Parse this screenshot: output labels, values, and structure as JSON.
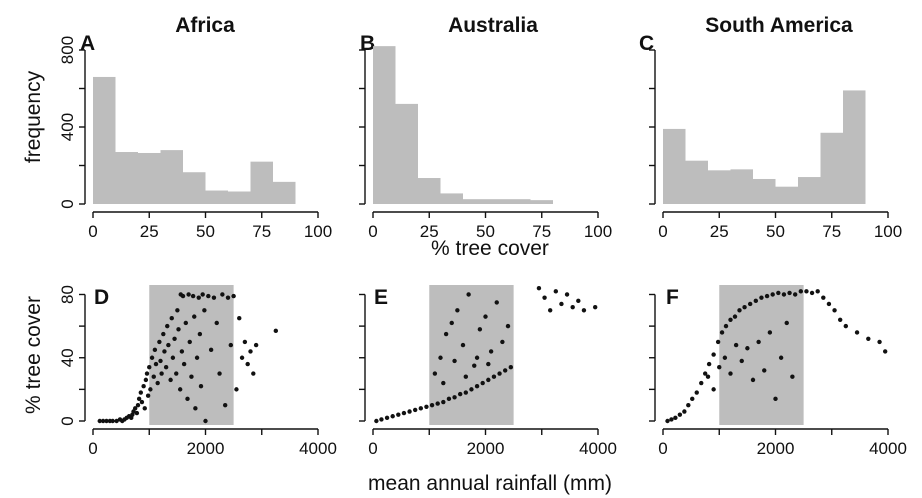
{
  "figure": {
    "xlabel_top": "% tree cover",
    "xlabel_bottom": "mean annual rainfall (mm)",
    "ylabel_top": "frequency",
    "ylabel_bottom": "% tree cover"
  },
  "chart_data": [
    {
      "panel": "A",
      "title": "Africa",
      "type": "bar",
      "bin_edges": [
        0,
        10,
        20,
        30,
        40,
        50,
        60,
        70,
        80,
        90
      ],
      "values": [
        660,
        270,
        265,
        280,
        165,
        70,
        65,
        220,
        115
      ],
      "xlim": [
        0,
        100
      ],
      "ylim": [
        0,
        800
      ],
      "xticks": [
        "0",
        "25",
        "50",
        "75",
        "100"
      ],
      "yticks": [
        "0",
        "400",
        "800"
      ]
    },
    {
      "panel": "B",
      "title": "Australia",
      "type": "bar",
      "bin_edges": [
        0,
        10,
        20,
        30,
        40,
        50,
        60,
        70,
        80,
        90
      ],
      "values": [
        820,
        520,
        135,
        55,
        25,
        25,
        25,
        20,
        0
      ],
      "xlim": [
        0,
        100
      ],
      "ylim": [
        0,
        800
      ],
      "xticks": [
        "0",
        "25",
        "50",
        "75",
        "100"
      ],
      "yticks": [
        "0",
        "400",
        "800"
      ]
    },
    {
      "panel": "C",
      "title": "South America",
      "type": "bar",
      "bin_edges": [
        0,
        10,
        20,
        30,
        40,
        50,
        60,
        70,
        80,
        90
      ],
      "values": [
        390,
        225,
        175,
        180,
        130,
        90,
        140,
        370,
        590
      ],
      "xlim": [
        0,
        100
      ],
      "ylim": [
        0,
        800
      ],
      "xticks": [
        "0",
        "25",
        "50",
        "75",
        "100"
      ],
      "yticks": [
        "0",
        "400",
        "800"
      ]
    },
    {
      "panel": "D",
      "type": "scatter",
      "shaded_band": [
        1000,
        2500
      ],
      "xlim": [
        0,
        4000
      ],
      "ylim": [
        0,
        86
      ],
      "xticks": [
        "0",
        "2000",
        "4000"
      ],
      "yticks": [
        "0",
        "40",
        "80"
      ],
      "points": [
        [
          120,
          0
        ],
        [
          180,
          0
        ],
        [
          240,
          0
        ],
        [
          300,
          0
        ],
        [
          350,
          0
        ],
        [
          420,
          0
        ],
        [
          480,
          1
        ],
        [
          520,
          0
        ],
        [
          560,
          1
        ],
        [
          600,
          2
        ],
        [
          640,
          3
        ],
        [
          680,
          2
        ],
        [
          700,
          4
        ],
        [
          720,
          6
        ],
        [
          750,
          8
        ],
        [
          780,
          5
        ],
        [
          800,
          10
        ],
        [
          820,
          14
        ],
        [
          850,
          18
        ],
        [
          870,
          12
        ],
        [
          900,
          22
        ],
        [
          920,
          8
        ],
        [
          940,
          26
        ],
        [
          960,
          30
        ],
        [
          980,
          16
        ],
        [
          1000,
          34
        ],
        [
          1020,
          20
        ],
        [
          1050,
          40
        ],
        [
          1080,
          28
        ],
        [
          1100,
          45
        ],
        [
          1120,
          36
        ],
        [
          1150,
          24
        ],
        [
          1180,
          50
        ],
        [
          1200,
          38
        ],
        [
          1220,
          30
        ],
        [
          1250,
          55
        ],
        [
          1270,
          44
        ],
        [
          1300,
          34
        ],
        [
          1320,
          60
        ],
        [
          1340,
          48
        ],
        [
          1380,
          26
        ],
        [
          1400,
          65
        ],
        [
          1420,
          40
        ],
        [
          1450,
          52
        ],
        [
          1480,
          30
        ],
        [
          1500,
          70
        ],
        [
          1520,
          58
        ],
        [
          1550,
          20
        ],
        [
          1560,
          80
        ],
        [
          1580,
          44
        ],
        [
          1600,
          79
        ],
        [
          1620,
          36
        ],
        [
          1650,
          62
        ],
        [
          1680,
          14
        ],
        [
          1700,
          80
        ],
        [
          1720,
          50
        ],
        [
          1750,
          28
        ],
        [
          1780,
          79
        ],
        [
          1800,
          66
        ],
        [
          1820,
          8
        ],
        [
          1850,
          40
        ],
        [
          1880,
          78
        ],
        [
          1900,
          55
        ],
        [
          1920,
          22
        ],
        [
          1950,
          80
        ],
        [
          1980,
          70
        ],
        [
          2000,
          0
        ],
        [
          2050,
          79
        ],
        [
          2100,
          45
        ],
        [
          2150,
          78
        ],
        [
          2200,
          62
        ],
        [
          2250,
          30
        ],
        [
          2300,
          80
        ],
        [
          2350,
          10
        ],
        [
          2400,
          78
        ],
        [
          2450,
          48
        ],
        [
          2500,
          79
        ],
        [
          2550,
          20
        ],
        [
          2600,
          65
        ],
        [
          2650,
          40
        ],
        [
          2700,
          50
        ],
        [
          2750,
          36
        ],
        [
          2800,
          44
        ],
        [
          2850,
          30
        ],
        [
          2900,
          48
        ],
        [
          3250,
          57
        ]
      ]
    },
    {
      "panel": "E",
      "type": "scatter",
      "shaded_band": [
        1000,
        2500
      ],
      "xlim": [
        0,
        4000
      ],
      "ylim": [
        0,
        86
      ],
      "xticks": [
        "0",
        "2000",
        "4000"
      ],
      "yticks": [
        "0",
        "40",
        "80"
      ],
      "points": [
        [
          60,
          0
        ],
        [
          150,
          1
        ],
        [
          250,
          2
        ],
        [
          350,
          3
        ],
        [
          450,
          4
        ],
        [
          550,
          5
        ],
        [
          650,
          6
        ],
        [
          750,
          7
        ],
        [
          850,
          8
        ],
        [
          950,
          9
        ],
        [
          1050,
          10
        ],
        [
          1150,
          11
        ],
        [
          1250,
          12
        ],
        [
          1350,
          14
        ],
        [
          1450,
          15
        ],
        [
          1550,
          17
        ],
        [
          1650,
          18
        ],
        [
          1750,
          20
        ],
        [
          1850,
          22
        ],
        [
          1950,
          24
        ],
        [
          2050,
          26
        ],
        [
          2150,
          28
        ],
        [
          2250,
          30
        ],
        [
          2350,
          32
        ],
        [
          2450,
          34
        ],
        [
          1200,
          40
        ],
        [
          1300,
          55
        ],
        [
          1400,
          62
        ],
        [
          1500,
          70
        ],
        [
          1600,
          48
        ],
        [
          1700,
          80
        ],
        [
          1800,
          35
        ],
        [
          1900,
          58
        ],
        [
          2000,
          66
        ],
        [
          2100,
          44
        ],
        [
          2200,
          75
        ],
        [
          2300,
          50
        ],
        [
          2400,
          60
        ],
        [
          1100,
          30
        ],
        [
          1250,
          24
        ],
        [
          1450,
          38
        ],
        [
          1650,
          28
        ],
        [
          1850,
          40
        ],
        [
          2050,
          36
        ],
        [
          2950,
          84
        ],
        [
          3050,
          78
        ],
        [
          3150,
          70
        ],
        [
          3250,
          82
        ],
        [
          3350,
          74
        ],
        [
          3450,
          80
        ],
        [
          3550,
          72
        ],
        [
          3650,
          76
        ],
        [
          3750,
          70
        ],
        [
          3950,
          72
        ]
      ]
    },
    {
      "panel": "F",
      "type": "scatter",
      "shaded_band": [
        1000,
        2500
      ],
      "xlim": [
        0,
        4000
      ],
      "ylim": [
        0,
        86
      ],
      "xticks": [
        "0",
        "2000",
        "4000"
      ],
      "yticks": [
        "0",
        "40",
        "80"
      ],
      "points": [
        [
          80,
          0
        ],
        [
          150,
          1
        ],
        [
          220,
          2
        ],
        [
          300,
          4
        ],
        [
          380,
          6
        ],
        [
          450,
          10
        ],
        [
          520,
          14
        ],
        [
          600,
          18
        ],
        [
          680,
          24
        ],
        [
          750,
          30
        ],
        [
          820,
          36
        ],
        [
          900,
          42
        ],
        [
          980,
          50
        ],
        [
          1050,
          56
        ],
        [
          1120,
          60
        ],
        [
          1200,
          64
        ],
        [
          1280,
          66
        ],
        [
          1360,
          70
        ],
        [
          1450,
          72
        ],
        [
          1550,
          74
        ],
        [
          1650,
          76
        ],
        [
          1750,
          78
        ],
        [
          1850,
          79
        ],
        [
          1950,
          80
        ],
        [
          2050,
          81
        ],
        [
          2150,
          80
        ],
        [
          2250,
          81
        ],
        [
          2350,
          80
        ],
        [
          2450,
          82
        ],
        [
          2550,
          82
        ],
        [
          2650,
          81
        ],
        [
          2750,
          82
        ],
        [
          2850,
          78
        ],
        [
          2950,
          74
        ],
        [
          3050,
          70
        ],
        [
          3150,
          64
        ],
        [
          3250,
          60
        ],
        [
          3450,
          56
        ],
        [
          3650,
          52
        ],
        [
          3850,
          50
        ],
        [
          3950,
          44
        ],
        [
          800,
          28
        ],
        [
          900,
          20
        ],
        [
          1000,
          34
        ],
        [
          1100,
          40
        ],
        [
          1200,
          30
        ],
        [
          1300,
          48
        ],
        [
          1400,
          38
        ],
        [
          1500,
          46
        ],
        [
          1600,
          26
        ],
        [
          1700,
          50
        ],
        [
          1800,
          32
        ],
        [
          1900,
          56
        ],
        [
          2000,
          14
        ],
        [
          2100,
          40
        ],
        [
          2200,
          62
        ],
        [
          2300,
          28
        ]
      ]
    }
  ]
}
